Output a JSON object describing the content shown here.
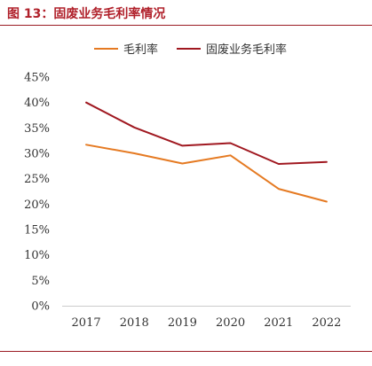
{
  "header": {
    "title": "图 13：固废业务毛利率情况"
  },
  "colors": {
    "accent": "#9b1c24",
    "series_1": "#e57a22",
    "series_2": "#a01820",
    "axis": "#cccccc"
  },
  "chart_data": {
    "type": "line",
    "title": "",
    "xlabel": "",
    "ylabel": "",
    "categories": [
      "2017",
      "2018",
      "2019",
      "2020",
      "2021",
      "2022"
    ],
    "yticks": [
      "0%",
      "5%",
      "10%",
      "15%",
      "20%",
      "25%",
      "30%",
      "35%",
      "40%",
      "45%"
    ],
    "ylim": [
      0,
      45
    ],
    "grid": false,
    "legend_position": "top",
    "series": [
      {
        "name": "毛利率",
        "values": [
          31.7,
          30.0,
          28.0,
          29.6,
          23.0,
          20.5
        ]
      },
      {
        "name": "固废业务毛利率",
        "values": [
          40.0,
          35.1,
          31.5,
          32.0,
          27.9,
          28.3
        ]
      }
    ]
  }
}
